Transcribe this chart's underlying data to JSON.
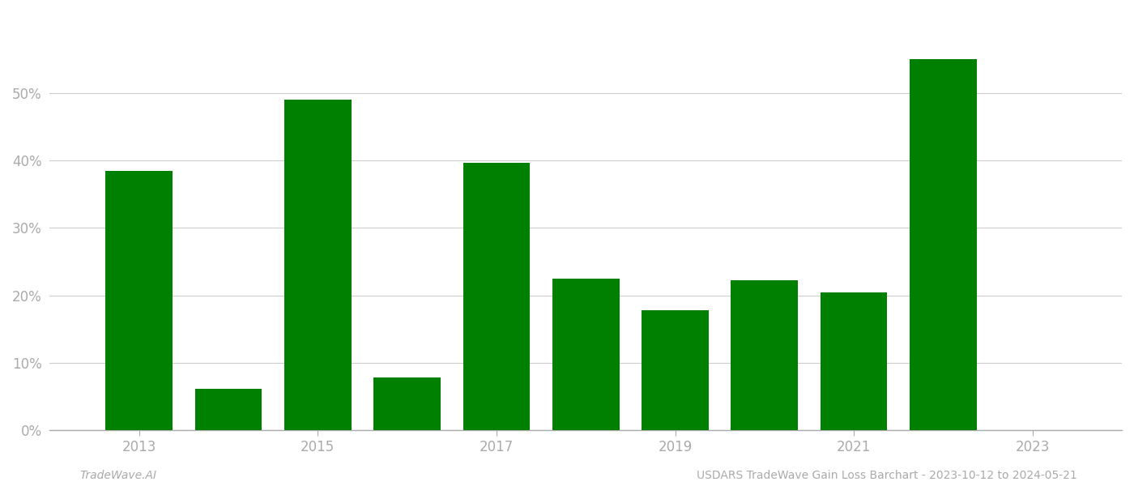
{
  "years": [
    2013,
    2014,
    2015,
    2016,
    2017,
    2018,
    2019,
    2020,
    2021,
    2022,
    2023
  ],
  "values": [
    0.385,
    0.062,
    0.49,
    0.078,
    0.397,
    0.225,
    0.178,
    0.222,
    0.205,
    0.55,
    0.0
  ],
  "bar_color": "#008000",
  "background_color": "#ffffff",
  "grid_color": "#cccccc",
  "ytick_labels": [
    "0%",
    "10%",
    "20%",
    "30%",
    "40%",
    "50%"
  ],
  "ytick_values": [
    0,
    0.1,
    0.2,
    0.3,
    0.4,
    0.5
  ],
  "xtick_labels": [
    "2013",
    "2015",
    "2017",
    "2019",
    "2021",
    "2023"
  ],
  "xtick_year_positions": [
    2013,
    2015,
    2017,
    2019,
    2021,
    2023
  ],
  "ylim": [
    0,
    0.62
  ],
  "footer_left": "TradeWave.AI",
  "footer_right": "USDARS TradeWave Gain Loss Barchart - 2023-10-12 to 2024-05-21",
  "footer_color": "#aaaaaa",
  "footer_fontsize": 10,
  "axis_color": "#aaaaaa",
  "tick_color": "#aaaaaa",
  "bar_width": 0.75
}
